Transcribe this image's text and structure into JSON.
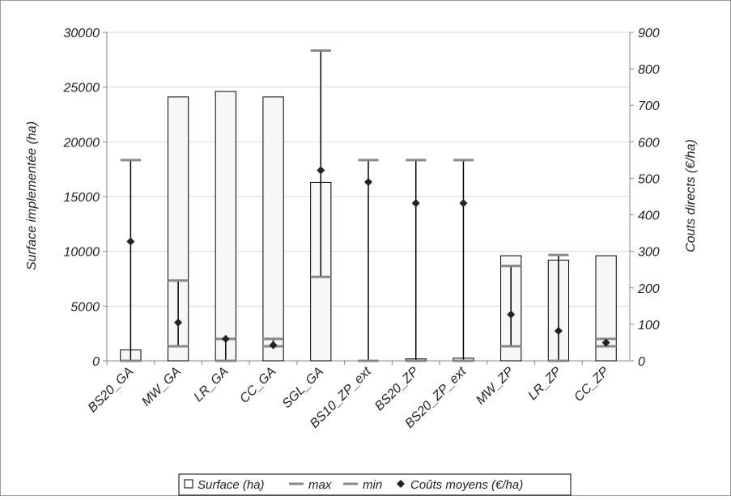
{
  "chart_data": {
    "type": "bar",
    "categories": [
      "BS20_GA",
      "MW_GA",
      "LR_GA",
      "CC_GA",
      "SGL_GA",
      "BS10_ZP_ext",
      "BS20_ZP",
      "BS20_ZP_ext",
      "MW_ZP",
      "LR_ZP",
      "CC_ZP"
    ],
    "series": [
      {
        "name": "Surface (ha)",
        "axis": "left",
        "values": [
          1000,
          24100,
          24600,
          24100,
          16300,
          0,
          180,
          250,
          9600,
          9200,
          9600
        ]
      },
      {
        "name": "max",
        "axis": "right",
        "values": [
          550,
          220,
          60,
          60,
          850,
          550,
          550,
          550,
          260,
          290,
          60
        ]
      },
      {
        "name": "min",
        "axis": "right",
        "values": [
          0,
          40,
          0,
          40,
          230,
          0,
          0,
          0,
          40,
          0,
          40
        ]
      },
      {
        "name": "Coûts moyens (€/ha)",
        "axis": "right",
        "values": [
          327,
          105,
          60,
          43,
          522,
          490,
          432,
          432,
          127,
          82,
          50
        ]
      }
    ],
    "ylabel_left": "Surface implementée (ha)",
    "ylabel_right": "Couts directs (€/ha)",
    "ylim_left": [
      0,
      30000
    ],
    "ylim_right": [
      0,
      900
    ],
    "yticks_left": [
      "0",
      "5000",
      "10000",
      "15000",
      "20000",
      "25000",
      "30000"
    ],
    "yticks_right": [
      "0",
      "100",
      "200",
      "300",
      "400",
      "500",
      "600",
      "700",
      "800",
      "900"
    ],
    "legend_position": "bottom",
    "grid": true,
    "colors": {
      "bar_fill": "#f7f7f7",
      "bar_stroke": "#000000",
      "minmax": "#888888",
      "marker": "#222222",
      "grid": "#d9d9d9"
    }
  },
  "legend": {
    "surface": "Surface (ha)",
    "max": "max",
    "min": "min",
    "cost": "Coûts moyens (€/ha)"
  }
}
